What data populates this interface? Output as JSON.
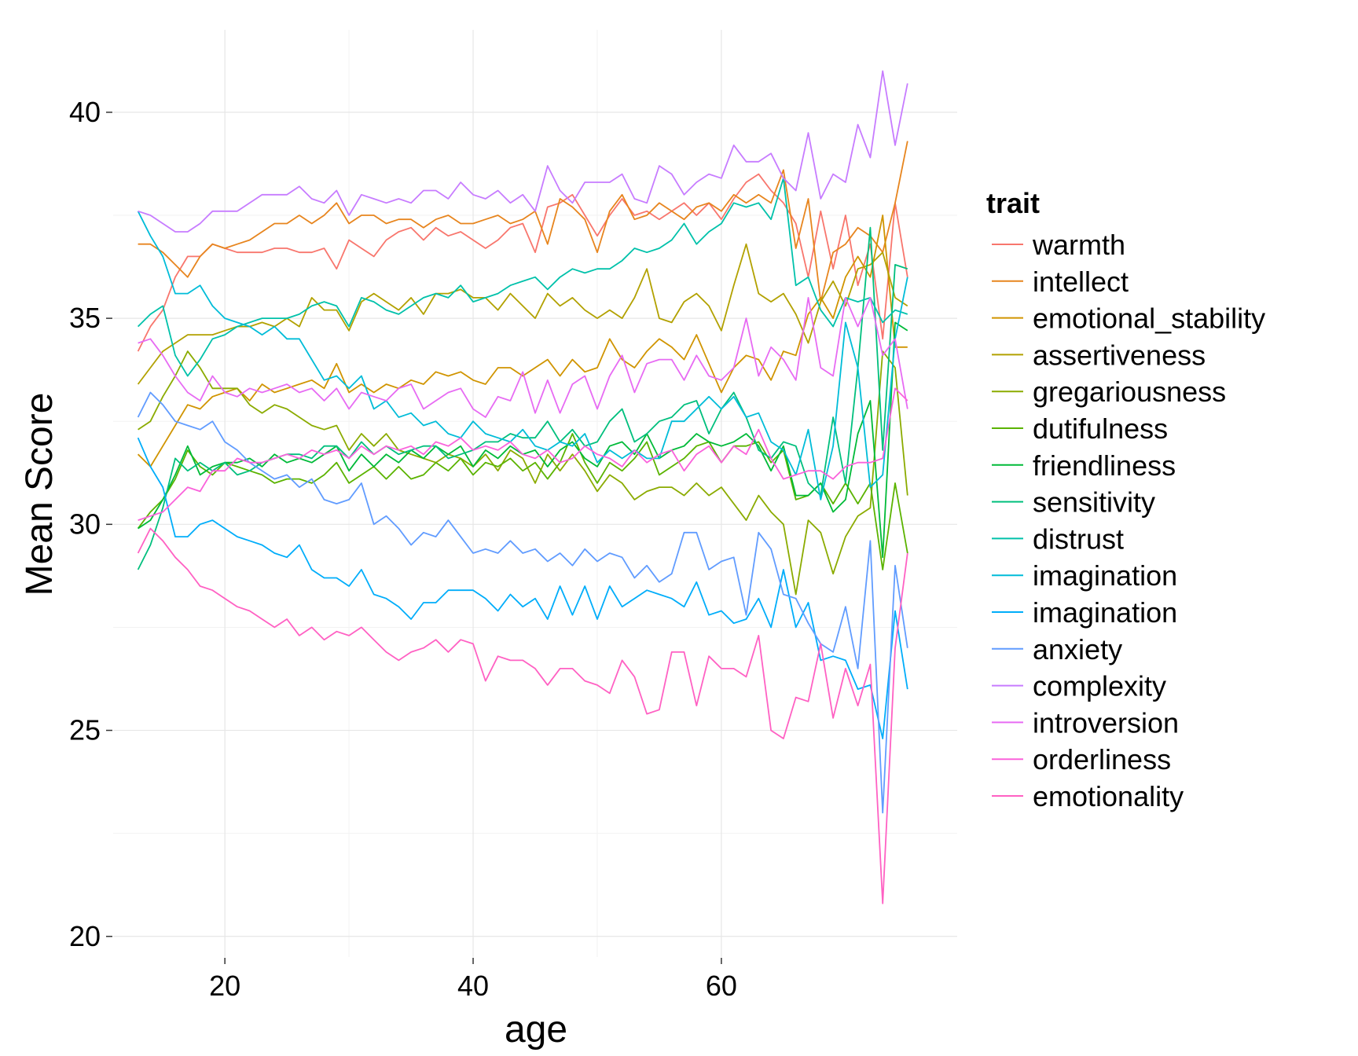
{
  "chart_data": {
    "type": "line",
    "title": "",
    "xlabel": "age",
    "ylabel": "Mean Score",
    "xlim": [
      11,
      79
    ],
    "ylim": [
      19.5,
      42
    ],
    "x_ticks": [
      20,
      40,
      60
    ],
    "y_ticks": [
      20,
      25,
      30,
      35,
      40
    ],
    "grid": true,
    "legend": {
      "title": "trait",
      "position": "right"
    },
    "x": [
      13,
      14,
      15,
      16,
      17,
      18,
      19,
      20,
      21,
      22,
      23,
      24,
      25,
      26,
      27,
      28,
      29,
      30,
      31,
      32,
      33,
      34,
      35,
      36,
      37,
      38,
      39,
      40,
      41,
      42,
      43,
      44,
      45,
      46,
      47,
      48,
      49,
      50,
      51,
      52,
      53,
      54,
      55,
      56,
      57,
      58,
      59,
      60,
      61,
      62,
      63,
      64,
      65,
      66,
      67,
      68,
      69,
      70,
      71,
      72,
      73,
      74,
      75
    ],
    "series": [
      {
        "name": "warmth",
        "color": "#F8766D",
        "values": [
          34.2,
          34.8,
          35.2,
          36.0,
          36.5,
          36.5,
          36.8,
          36.7,
          36.6,
          36.6,
          36.6,
          36.7,
          36.7,
          36.6,
          36.6,
          36.7,
          36.2,
          36.9,
          36.7,
          36.5,
          36.9,
          37.1,
          37.2,
          36.9,
          37.2,
          37.0,
          37.1,
          36.9,
          36.7,
          36.9,
          37.2,
          37.3,
          36.6,
          37.7,
          37.8,
          38.0,
          37.5,
          37.0,
          37.5,
          37.9,
          37.5,
          37.6,
          37.4,
          37.6,
          37.8,
          37.5,
          37.8,
          37.4,
          37.9,
          38.3,
          38.5,
          38.1,
          37.8,
          37.3,
          36.0,
          37.6,
          36.2,
          37.5,
          35.8,
          36.8,
          34.5,
          37.8,
          36.0
        ]
      },
      {
        "name": "intellect",
        "color": "#E7851E",
        "values": [
          36.8,
          36.8,
          36.6,
          36.3,
          36.0,
          36.5,
          36.8,
          36.7,
          36.8,
          36.9,
          37.1,
          37.3,
          37.3,
          37.5,
          37.3,
          37.5,
          37.8,
          37.3,
          37.5,
          37.5,
          37.3,
          37.4,
          37.4,
          37.2,
          37.4,
          37.5,
          37.3,
          37.3,
          37.4,
          37.5,
          37.3,
          37.4,
          37.6,
          36.8,
          37.9,
          37.7,
          37.4,
          36.6,
          37.6,
          38.0,
          37.4,
          37.5,
          37.8,
          37.6,
          37.4,
          37.7,
          37.8,
          37.6,
          38.0,
          37.8,
          38.0,
          37.8,
          38.6,
          36.7,
          37.9,
          35.4,
          36.6,
          36.8,
          37.2,
          37.0,
          36.6,
          37.8,
          39.3
        ]
      },
      {
        "name": "emotional_stability",
        "color": "#D09400",
        "values": [
          31.7,
          31.4,
          31.9,
          32.4,
          32.9,
          32.8,
          33.1,
          33.2,
          33.3,
          33.0,
          33.4,
          33.2,
          33.3,
          33.4,
          33.5,
          33.3,
          33.9,
          33.2,
          33.4,
          33.2,
          33.4,
          33.3,
          33.5,
          33.4,
          33.7,
          33.6,
          33.7,
          33.5,
          33.4,
          33.8,
          33.8,
          33.6,
          33.8,
          34.0,
          33.6,
          34.0,
          33.7,
          33.8,
          34.5,
          34.0,
          33.8,
          34.2,
          34.5,
          34.3,
          34.0,
          34.6,
          33.9,
          33.2,
          33.8,
          34.1,
          34.0,
          33.5,
          34.2,
          34.1,
          35.1,
          35.5,
          35.0,
          36.0,
          36.5,
          36.0,
          37.5,
          34.3,
          34.3
        ]
      },
      {
        "name": "assertiveness",
        "color": "#B2A100",
        "values": [
          33.4,
          33.8,
          34.2,
          34.4,
          34.6,
          34.6,
          34.6,
          34.7,
          34.8,
          34.8,
          34.9,
          34.8,
          35.0,
          34.8,
          35.5,
          35.2,
          35.2,
          34.7,
          35.4,
          35.6,
          35.4,
          35.2,
          35.5,
          35.1,
          35.6,
          35.6,
          35.7,
          35.5,
          35.5,
          35.2,
          35.6,
          35.3,
          35.0,
          35.6,
          35.3,
          35.5,
          35.2,
          35.0,
          35.2,
          35.0,
          35.5,
          36.2,
          35.0,
          34.9,
          35.4,
          35.6,
          35.3,
          34.7,
          35.8,
          36.8,
          35.6,
          35.4,
          35.6,
          35.1,
          34.4,
          35.4,
          35.9,
          35.3,
          36.2,
          36.3,
          36.6,
          35.5,
          35.3
        ]
      },
      {
        "name": "gregariousness",
        "color": "#8BAB00",
        "values": [
          32.3,
          32.5,
          33.1,
          33.6,
          34.2,
          33.8,
          33.3,
          33.3,
          33.3,
          32.9,
          32.7,
          32.9,
          32.8,
          32.6,
          32.4,
          32.3,
          32.4,
          31.8,
          32.2,
          31.9,
          32.2,
          31.8,
          31.7,
          31.6,
          31.5,
          31.7,
          31.6,
          31.4,
          31.7,
          31.3,
          31.8,
          31.6,
          31.0,
          31.7,
          31.3,
          31.7,
          31.3,
          30.8,
          31.2,
          31.0,
          30.6,
          30.8,
          30.9,
          30.9,
          30.7,
          31.0,
          30.7,
          30.9,
          30.5,
          30.1,
          30.7,
          30.3,
          30.0,
          28.3,
          30.1,
          29.8,
          28.8,
          29.7,
          30.2,
          30.4,
          34.2,
          33.8,
          30.7
        ]
      },
      {
        "name": "dutifulness",
        "color": "#5BB300",
        "values": [
          29.9,
          30.3,
          30.6,
          31.1,
          31.8,
          31.4,
          31.2,
          31.5,
          31.4,
          31.3,
          31.2,
          31.0,
          31.1,
          31.1,
          31.0,
          31.2,
          31.5,
          31.0,
          31.2,
          31.4,
          31.1,
          31.4,
          31.1,
          31.2,
          31.5,
          31.3,
          31.6,
          31.2,
          31.5,
          31.4,
          31.6,
          31.3,
          31.5,
          31.1,
          31.5,
          32.2,
          31.5,
          31.0,
          31.5,
          31.3,
          31.6,
          32.0,
          31.2,
          31.4,
          31.6,
          31.9,
          32.0,
          31.5,
          31.9,
          31.9,
          32.0,
          31.5,
          31.8,
          30.6,
          30.7,
          31.0,
          30.5,
          31.0,
          30.5,
          31.0,
          28.9,
          31.0,
          29.3
        ]
      },
      {
        "name": "friendliness",
        "color": "#00BA38",
        "values": [
          29.9,
          30.1,
          30.6,
          31.2,
          31.9,
          31.2,
          31.4,
          31.5,
          31.5,
          31.6,
          31.4,
          31.7,
          31.5,
          31.6,
          31.5,
          31.7,
          31.9,
          31.3,
          31.7,
          31.4,
          31.7,
          31.5,
          31.8,
          31.6,
          31.9,
          31.7,
          31.9,
          31.4,
          31.8,
          31.6,
          31.9,
          31.7,
          31.8,
          31.4,
          31.8,
          32.0,
          31.6,
          31.4,
          31.9,
          32.0,
          31.7,
          32.2,
          31.6,
          31.8,
          31.9,
          32.2,
          32.0,
          31.9,
          32.0,
          32.2,
          31.9,
          31.3,
          31.9,
          30.7,
          30.7,
          31.0,
          30.3,
          30.6,
          32.2,
          33.0,
          29.2,
          34.9,
          34.7
        ]
      },
      {
        "name": "sensitivity",
        "color": "#00BF7D",
        "values": [
          28.9,
          29.5,
          30.4,
          31.6,
          31.3,
          31.5,
          31.3,
          31.5,
          31.2,
          31.3,
          31.5,
          31.6,
          31.7,
          31.7,
          31.6,
          31.9,
          31.9,
          31.6,
          32.0,
          31.7,
          31.9,
          31.7,
          31.8,
          31.9,
          31.9,
          31.6,
          31.7,
          31.8,
          32.0,
          32.0,
          32.2,
          32.1,
          32.1,
          32.5,
          32.0,
          32.3,
          31.9,
          32.0,
          32.5,
          32.8,
          32.0,
          32.2,
          32.5,
          32.6,
          32.9,
          33.0,
          32.2,
          32.8,
          33.2,
          32.6,
          31.8,
          31.6,
          32.0,
          31.9,
          31.0,
          30.7,
          32.6,
          31.0,
          33.8,
          37.2,
          31.8,
          36.3,
          36.2
        ]
      },
      {
        "name": "distrust",
        "color": "#00C1AA",
        "values": [
          34.8,
          35.1,
          35.3,
          34.1,
          33.6,
          34.0,
          34.5,
          34.6,
          34.8,
          34.9,
          35.0,
          35.0,
          35.0,
          35.1,
          35.3,
          35.4,
          35.3,
          34.8,
          35.5,
          35.4,
          35.2,
          35.1,
          35.3,
          35.5,
          35.6,
          35.5,
          35.8,
          35.4,
          35.5,
          35.6,
          35.8,
          35.9,
          36.0,
          35.7,
          36.0,
          36.2,
          36.1,
          36.2,
          36.2,
          36.4,
          36.7,
          36.6,
          36.7,
          36.9,
          37.3,
          36.8,
          37.1,
          37.3,
          37.8,
          37.7,
          37.8,
          37.4,
          38.4,
          35.8,
          36.0,
          35.2,
          34.8,
          35.5,
          35.4,
          35.5,
          34.9,
          35.2,
          35.1
        ]
      },
      {
        "name": "imagination",
        "color": "#00BCD8",
        "values": [
          37.6,
          37.0,
          36.5,
          35.6,
          35.6,
          35.8,
          35.3,
          35.0,
          34.9,
          34.8,
          34.6,
          34.8,
          34.5,
          34.5,
          34.0,
          33.5,
          33.6,
          33.3,
          33.6,
          32.8,
          33.0,
          32.6,
          32.7,
          32.4,
          32.5,
          32.2,
          32.1,
          32.5,
          32.2,
          32.1,
          32.0,
          32.3,
          31.9,
          31.8,
          32.0,
          31.9,
          32.2,
          31.5,
          31.8,
          31.6,
          31.8,
          31.6,
          31.6,
          32.5,
          32.5,
          32.8,
          33.1,
          32.8,
          33.1,
          32.6,
          32.7,
          32.0,
          31.8,
          31.2,
          32.3,
          30.6,
          31.9,
          34.9,
          33.8,
          30.9,
          31.2,
          34.5,
          36.0
        ]
      },
      {
        "name": "imagination",
        "color": "#00ADFA",
        "values": [
          32.1,
          31.4,
          30.9,
          29.7,
          29.7,
          30.0,
          30.1,
          29.9,
          29.7,
          29.6,
          29.5,
          29.3,
          29.2,
          29.5,
          28.9,
          28.7,
          28.7,
          28.5,
          28.9,
          28.3,
          28.2,
          28.0,
          27.7,
          28.1,
          28.1,
          28.4,
          28.4,
          28.4,
          28.2,
          27.9,
          28.3,
          28.0,
          28.2,
          27.7,
          28.5,
          27.8,
          28.5,
          27.7,
          28.5,
          28.0,
          28.2,
          28.4,
          28.3,
          28.2,
          28.0,
          28.6,
          27.8,
          27.9,
          27.6,
          27.7,
          28.2,
          27.5,
          28.9,
          27.5,
          28.1,
          26.7,
          26.8,
          26.7,
          26.0,
          26.1,
          24.8,
          27.9,
          26.0
        ]
      },
      {
        "name": "anxiety",
        "color": "#619CFF",
        "values": [
          32.6,
          33.2,
          32.9,
          32.5,
          32.4,
          32.3,
          32.5,
          32.0,
          31.8,
          31.5,
          31.3,
          31.1,
          31.2,
          30.9,
          31.1,
          30.6,
          30.5,
          30.6,
          31.0,
          30.0,
          30.2,
          29.9,
          29.5,
          29.8,
          29.7,
          30.1,
          29.7,
          29.3,
          29.4,
          29.3,
          29.6,
          29.3,
          29.4,
          29.1,
          29.3,
          29.0,
          29.4,
          29.1,
          29.3,
          29.2,
          28.7,
          29.0,
          28.6,
          28.8,
          29.8,
          29.8,
          28.9,
          29.1,
          29.2,
          27.8,
          29.8,
          29.4,
          28.3,
          28.2,
          27.6,
          27.1,
          26.9,
          28.0,
          26.5,
          29.6,
          23.0,
          29.0,
          27.0
        ]
      },
      {
        "name": "complexity",
        "color": "#C77CFF",
        "values": [
          37.6,
          37.5,
          37.3,
          37.1,
          37.1,
          37.3,
          37.6,
          37.6,
          37.6,
          37.8,
          38.0,
          38.0,
          38.0,
          38.2,
          37.9,
          37.8,
          38.1,
          37.5,
          38.0,
          37.9,
          37.8,
          37.9,
          37.8,
          38.1,
          38.1,
          37.9,
          38.3,
          38.0,
          37.9,
          38.1,
          37.8,
          38.0,
          37.6,
          38.7,
          38.1,
          37.8,
          38.3,
          38.3,
          38.3,
          38.5,
          37.9,
          37.8,
          38.7,
          38.5,
          38.0,
          38.3,
          38.5,
          38.4,
          39.2,
          38.8,
          38.8,
          39.0,
          38.4,
          38.1,
          39.5,
          37.9,
          38.5,
          38.3,
          39.7,
          38.9,
          41.0,
          39.2,
          40.7
        ]
      },
      {
        "name": "introversion",
        "color": "#E76BF3",
        "values": [
          34.4,
          34.5,
          34.1,
          33.6,
          33.2,
          33.0,
          33.6,
          33.2,
          33.1,
          33.3,
          33.2,
          33.3,
          33.4,
          33.2,
          33.3,
          33.0,
          33.3,
          32.8,
          33.2,
          33.1,
          33.0,
          33.3,
          33.4,
          32.8,
          33.0,
          33.2,
          33.3,
          32.8,
          32.6,
          33.1,
          33.0,
          33.7,
          32.7,
          33.5,
          32.7,
          33.4,
          33.6,
          32.8,
          33.6,
          34.1,
          33.2,
          33.9,
          34.0,
          34.0,
          33.5,
          34.1,
          33.6,
          33.5,
          33.8,
          35.0,
          33.6,
          34.3,
          34.0,
          33.5,
          35.5,
          33.8,
          33.6,
          35.5,
          34.8,
          35.5,
          34.1,
          34.5,
          32.8
        ]
      },
      {
        "name": "orderliness",
        "color": "#FA62DB",
        "values": [
          30.1,
          30.2,
          30.3,
          30.6,
          30.9,
          30.8,
          31.3,
          31.3,
          31.6,
          31.5,
          31.5,
          31.6,
          31.7,
          31.6,
          31.8,
          31.7,
          31.8,
          31.6,
          31.9,
          31.7,
          31.9,
          31.8,
          31.9,
          31.7,
          32.0,
          31.9,
          32.1,
          31.8,
          31.9,
          31.8,
          32.0,
          31.7,
          31.6,
          31.8,
          31.5,
          31.6,
          31.9,
          31.7,
          31.6,
          31.4,
          31.8,
          31.5,
          31.7,
          31.8,
          31.3,
          31.7,
          31.9,
          31.5,
          31.9,
          31.7,
          32.3,
          31.6,
          31.1,
          31.2,
          31.3,
          31.3,
          31.1,
          31.4,
          31.5,
          31.5,
          31.6,
          33.3,
          33.0
        ]
      },
      {
        "name": "emotionality",
        "color": "#FF61C3",
        "values": [
          29.3,
          29.9,
          29.6,
          29.2,
          28.9,
          28.5,
          28.4,
          28.2,
          28.0,
          27.9,
          27.7,
          27.5,
          27.7,
          27.3,
          27.5,
          27.2,
          27.4,
          27.3,
          27.5,
          27.2,
          26.9,
          26.7,
          26.9,
          27.0,
          27.2,
          26.9,
          27.2,
          27.1,
          26.2,
          26.8,
          26.7,
          26.7,
          26.5,
          26.1,
          26.5,
          26.5,
          26.2,
          26.1,
          25.9,
          26.7,
          26.3,
          25.4,
          25.5,
          26.9,
          26.9,
          25.6,
          26.8,
          26.5,
          26.5,
          26.3,
          27.3,
          25.0,
          24.8,
          25.8,
          25.7,
          27.1,
          25.3,
          26.5,
          25.6,
          26.6,
          20.8,
          27.0,
          29.3
        ]
      }
    ]
  }
}
